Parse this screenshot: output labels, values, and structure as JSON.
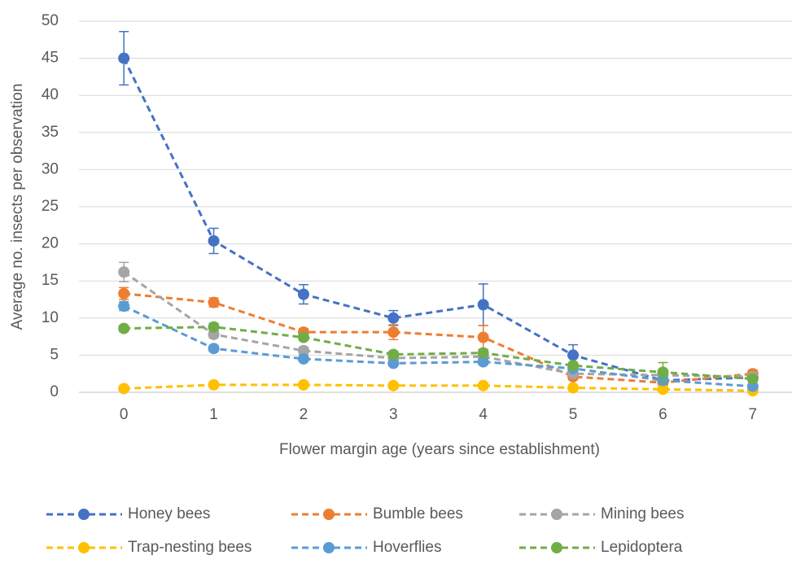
{
  "chart_data": {
    "type": "line",
    "x_label": "Flower margin age (years since establishment)",
    "y_label": "Average no. insects per observation",
    "x": [
      0,
      1,
      2,
      3,
      4,
      5,
      6,
      7
    ],
    "xlim": [
      -0.5,
      7.5
    ],
    "xticks": [
      0,
      1,
      2,
      3,
      4,
      5,
      6,
      7
    ],
    "ylim": [
      0,
      50
    ],
    "yticks": [
      0,
      5,
      10,
      15,
      20,
      25,
      30,
      35,
      40,
      45,
      50
    ],
    "grid": true,
    "legend": "bottom",
    "series": [
      {
        "name": "Honey bees",
        "color": "#4472c4",
        "values": [
          45,
          20.4,
          13.2,
          10,
          11.8,
          5,
          1.6,
          2.0
        ],
        "errors": [
          3.6,
          1.7,
          1.3,
          1.0,
          2.8,
          1.4,
          0.5,
          0.5
        ]
      },
      {
        "name": "Bumble bees",
        "color": "#ed7d31",
        "values": [
          13.3,
          12.1,
          8.1,
          8.1,
          7.4,
          2.1,
          1.3,
          2.5
        ],
        "errors": [
          0.8,
          0.6,
          0.5,
          1.0,
          1.6,
          0.4,
          0.3,
          0.5
        ]
      },
      {
        "name": "Mining bees",
        "color": "#a5a5a5",
        "values": [
          16.2,
          7.8,
          5.6,
          4.6,
          4.8,
          2.5,
          2.3,
          2.1
        ],
        "errors": [
          1.3,
          0.5,
          0.5,
          0.4,
          0.5,
          0.4,
          0.4,
          0.3
        ]
      },
      {
        "name": "Trap-nesting bees",
        "color": "#ffc000",
        "values": [
          0.5,
          1.0,
          1.0,
          0.9,
          0.9,
          0.6,
          0.4,
          0.2
        ],
        "errors": [
          0.1,
          0.1,
          0.1,
          0.1,
          0.1,
          0.1,
          0.1,
          0.1
        ]
      },
      {
        "name": "Hoverflies",
        "color": "#5b9bd5",
        "values": [
          11.6,
          5.9,
          4.5,
          3.9,
          4.1,
          3.2,
          1.6,
          0.8
        ],
        "errors": [
          0.6,
          0.4,
          0.3,
          0.3,
          0.4,
          0.3,
          0.3,
          0.2
        ]
      },
      {
        "name": "Lepidoptera",
        "color": "#70ad47",
        "values": [
          8.6,
          8.8,
          7.4,
          5.1,
          5.3,
          3.6,
          2.7,
          1.8
        ],
        "errors": [
          0.4,
          0.5,
          0.4,
          0.4,
          0.4,
          0.4,
          1.3,
          0.3
        ]
      }
    ]
  }
}
